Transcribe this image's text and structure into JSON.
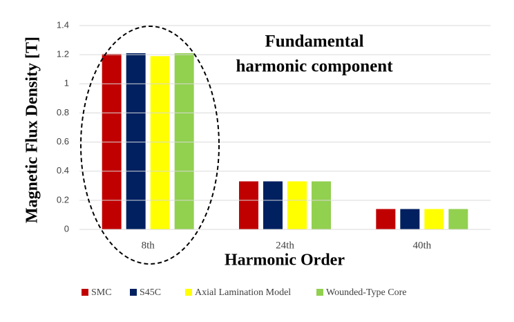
{
  "chart_data": {
    "type": "bar",
    "x_label": "Harmonic Order",
    "y_label": "Magnetic Flux Density [T]",
    "annotation": [
      "Fundamental",
      "harmonic component"
    ],
    "categories": [
      "8th",
      "24th",
      "40th"
    ],
    "series": [
      {
        "name": "SMC",
        "color": "#c00000",
        "values": [
          1.205,
          0.33,
          0.14
        ]
      },
      {
        "name": "S45C",
        "color": "#002060",
        "values": [
          1.21,
          0.33,
          0.14
        ]
      },
      {
        "name": "Axial Lamination Model",
        "color": "#ffff00",
        "values": [
          1.19,
          0.33,
          0.14
        ]
      },
      {
        "name": "Wounded-Type Core",
        "color": "#92d050",
        "values": [
          1.21,
          0.33,
          0.14
        ]
      }
    ],
    "ylim": [
      0,
      1.4
    ],
    "yticks": [
      0,
      0.2,
      0.4,
      0.6,
      0.8,
      1,
      1.2,
      1.4
    ],
    "grid": true,
    "legend": "bottom"
  }
}
